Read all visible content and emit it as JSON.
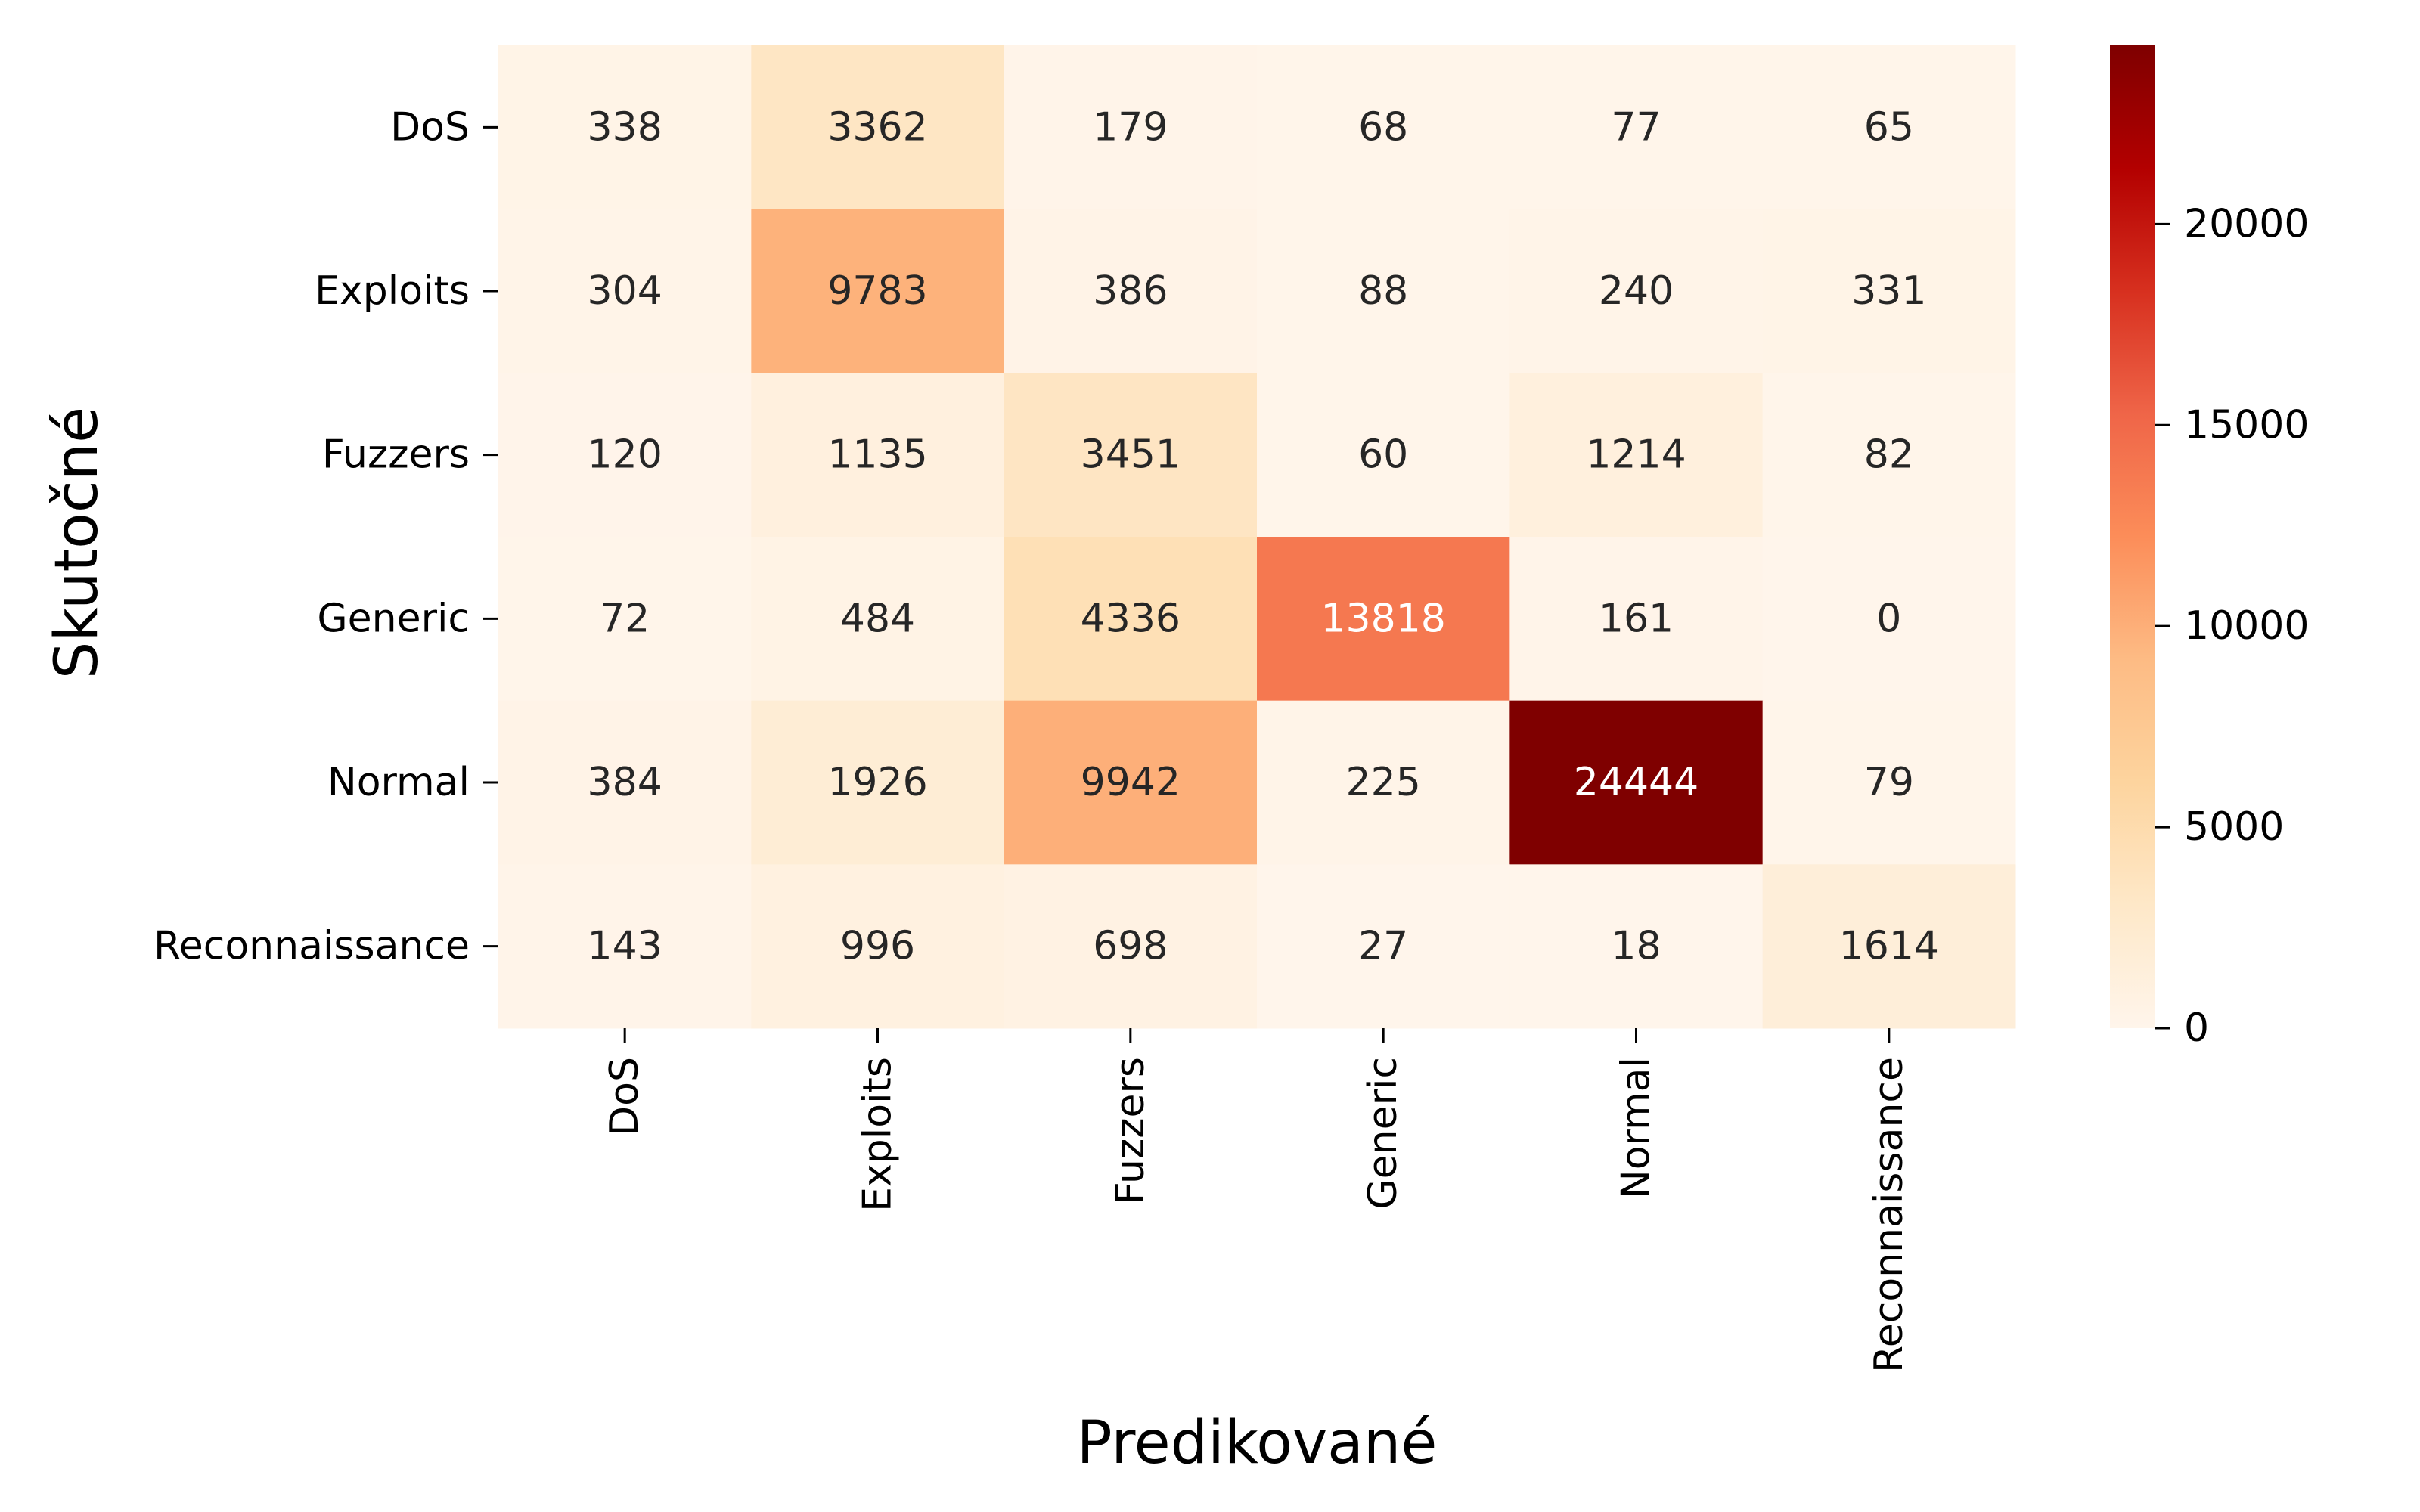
{
  "chart_data": {
    "type": "heatmap",
    "title": "",
    "xlabel": "Predikované",
    "ylabel": "Skutočné",
    "x_categories": [
      "DoS",
      "Exploits",
      "Fuzzers",
      "Generic",
      "Normal",
      "Reconnaissance"
    ],
    "y_categories": [
      "DoS",
      "Exploits",
      "Fuzzers",
      "Generic",
      "Normal",
      "Reconnaissance"
    ],
    "values": [
      [
        338,
        3362,
        179,
        68,
        77,
        65
      ],
      [
        304,
        9783,
        386,
        88,
        240,
        331
      ],
      [
        120,
        1135,
        3451,
        60,
        1214,
        82
      ],
      [
        72,
        484,
        4336,
        13818,
        161,
        0
      ],
      [
        384,
        1926,
        9942,
        225,
        24444,
        79
      ],
      [
        143,
        996,
        698,
        27,
        18,
        1614
      ]
    ],
    "colormap": "OrRd",
    "colorbar": {
      "range": [
        0,
        24444
      ],
      "ticks": [
        0,
        5000,
        10000,
        15000,
        20000
      ],
      "tick_labels": [
        "0",
        "5000",
        "10000",
        "15000",
        "20000"
      ]
    },
    "grid": false,
    "annotated": true
  }
}
